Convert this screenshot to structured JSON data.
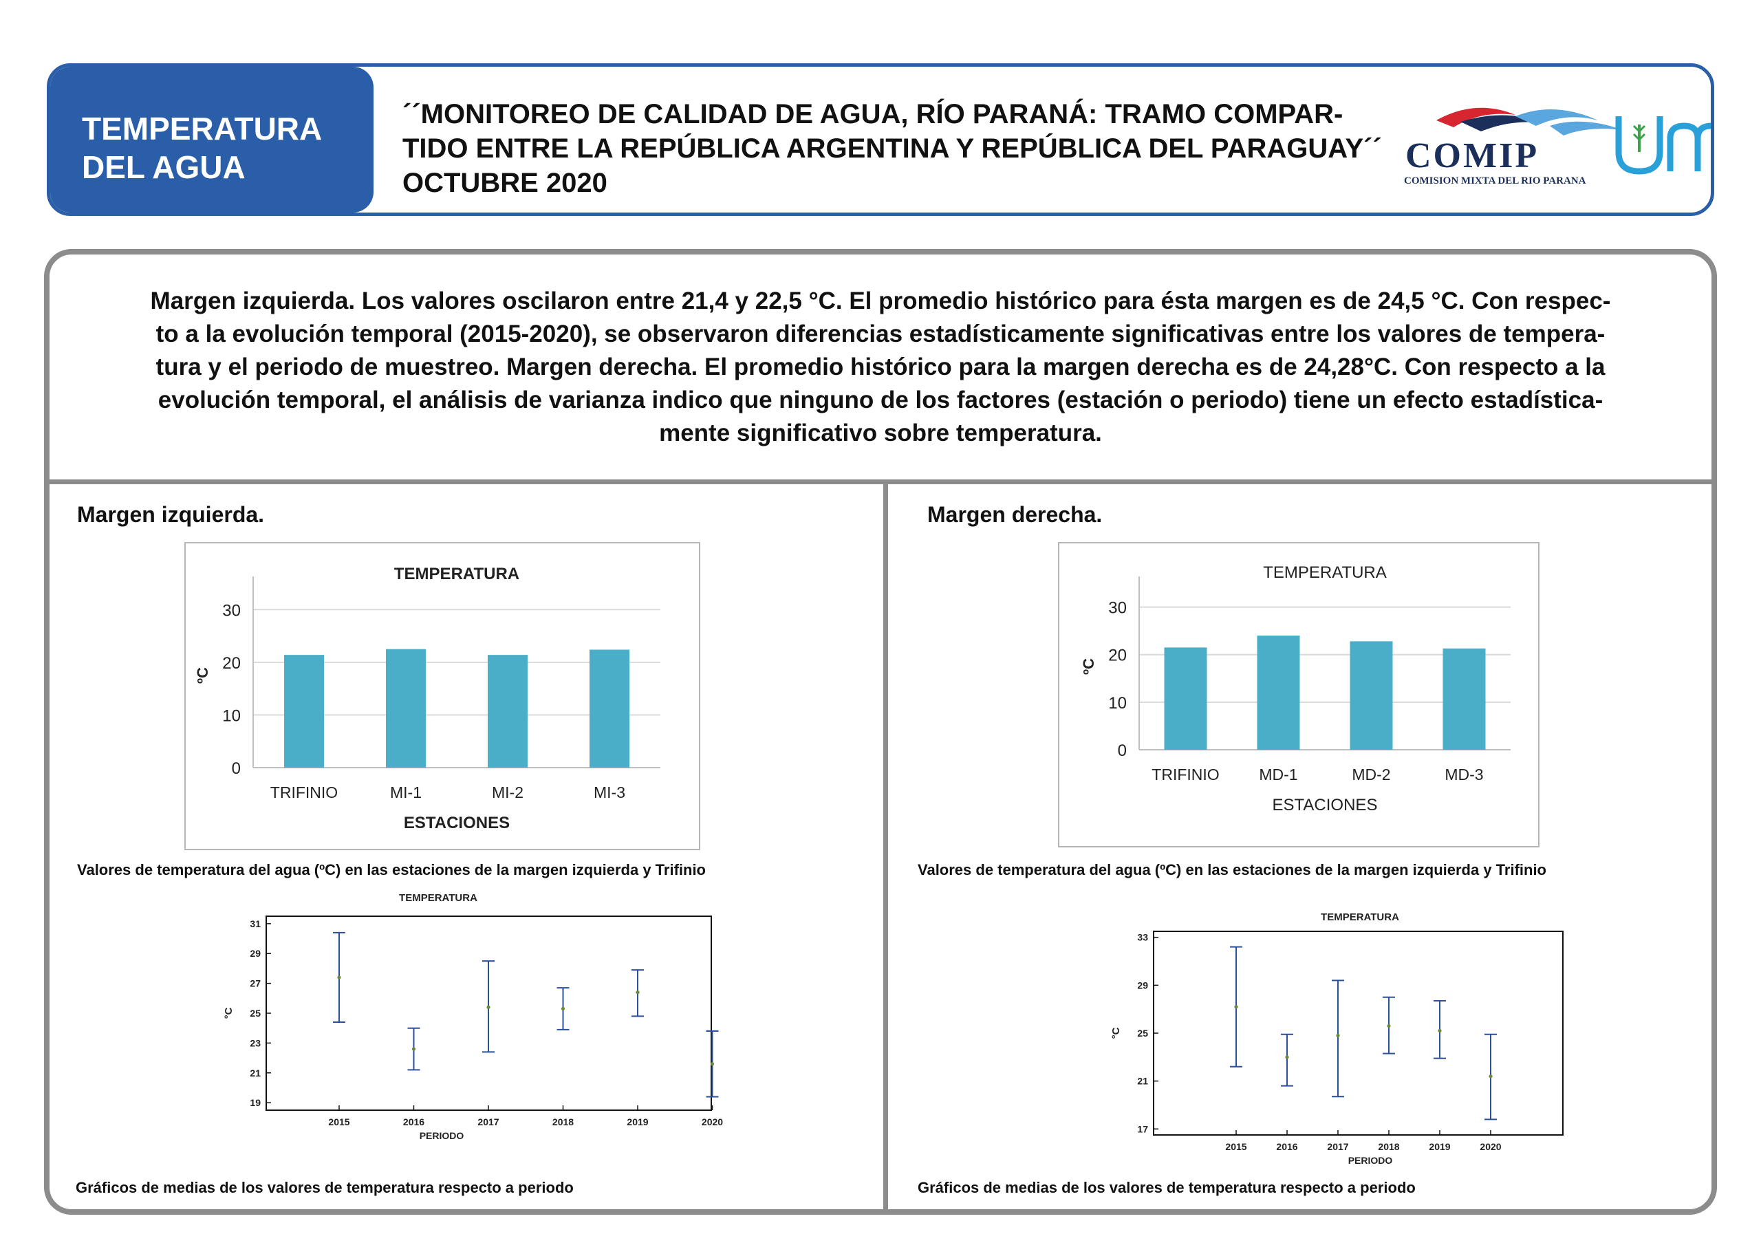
{
  "header": {
    "section_title_line1": "TEMPERATURA",
    "section_title_line2": "DEL AGUA",
    "title_line1": "´´MONITOREO DE CALIDAD DE AGUA, RÍO PARANÁ: TRAMO COMPAR-",
    "title_line2": "TIDO ENTRE LA REPÚBLICA ARGENTINA Y REPÚBLICA DEL PARAGUAY´´",
    "title_line3": "OCTUBRE 2020",
    "logo_comip": "COMIP",
    "logo_comip_sub": "COMISION MIXTA DEL RIO PARANA",
    "logo_unam": "unam"
  },
  "summary": {
    "line1": "Margen izquierda. Los valores oscilaron entre 21,4 y 22,5 °C. El promedio histórico para ésta margen es de 24,5 °C. Con respec-",
    "line2": "to a la evolución temporal (2015-2020), se observaron diferencias estadísticamente significativas entre los valores de tempera-",
    "line3": "tura y el periodo de muestreo. Margen derecha. El promedio histórico para la margen derecha es de 24,28°C. Con respecto a la",
    "line4": "evolución temporal, el análisis de varianza indico que ninguno de los factores (estación o periodo) tiene un efecto estadística-",
    "line5": "mente significativo sobre temperatura."
  },
  "left": {
    "title": "Margen izquierda.",
    "bar_caption": "Valores de temperatura del agua (ºC) en las estaciones de la margen izquierda y Trifinio",
    "means_caption": "Gráficos de medias de los valores de temperatura respecto a periodo"
  },
  "right": {
    "title": "Margen derecha.",
    "bar_caption": "Valores de temperatura del agua (ºC) en las estaciones de la margen izquierda y Trifinio",
    "means_caption": "Gráficos de medias de los valores de temperatura respecto a periodo"
  },
  "colors": {
    "brand_blue": "#2a5ea8",
    "bar": "#4aaec9",
    "whisker": "#2a4f9e",
    "border_gray": "#8c8c8c"
  },
  "chart_data": [
    {
      "id": "left_bar",
      "type": "bar",
      "title": "TEMPERATURA",
      "xlabel": "ESTACIONES",
      "ylabel": "ºC",
      "categories": [
        "TRIFINIO",
        "MI-1",
        "MI-2",
        "MI-3"
      ],
      "values": [
        21.4,
        22.5,
        21.4,
        22.4
      ],
      "ylim": [
        0,
        35
      ],
      "yticks": [
        0,
        10,
        20,
        30
      ],
      "grid": true
    },
    {
      "id": "right_bar",
      "type": "bar",
      "title": "TEMPERATURA",
      "xlabel": "ESTACIONES",
      "ylabel": "ºC",
      "categories": [
        "TRIFINIO",
        "MD-1",
        "MD-2",
        "MD-3"
      ],
      "values": [
        21.5,
        24,
        22.8,
        21.3
      ],
      "ylim": [
        0,
        35
      ],
      "yticks": [
        0,
        10,
        20,
        30
      ],
      "grid": true
    },
    {
      "id": "left_means",
      "type": "scatter",
      "title": "TEMPERATURA",
      "xlabel": "PERIODO",
      "ylabel": "°C",
      "x": [
        "2015",
        "2016",
        "2017",
        "2018",
        "2019",
        "2020"
      ],
      "means": [
        27.4,
        22.6,
        25.4,
        25.3,
        26.4,
        21.6
      ],
      "lower": [
        24.4,
        21.2,
        22.4,
        23.9,
        24.8,
        19.4
      ],
      "upper": [
        30.4,
        24.0,
        28.5,
        26.7,
        27.9,
        23.8
      ],
      "ylim": [
        18.5,
        31.5
      ],
      "yticks": [
        19,
        21,
        23,
        25,
        27,
        29,
        31
      ],
      "grid": false
    },
    {
      "id": "right_means",
      "type": "scatter",
      "title": "TEMPERATURA",
      "xlabel": "PERIODO",
      "ylabel": "°C",
      "x": [
        "2015",
        "2016",
        "2017",
        "2018",
        "2019",
        "2020"
      ],
      "means": [
        27.2,
        23.0,
        24.8,
        25.6,
        25.2,
        21.4
      ],
      "lower": [
        22.2,
        20.6,
        19.7,
        23.3,
        22.9,
        17.8
      ],
      "upper": [
        32.2,
        24.9,
        29.4,
        28.0,
        27.7,
        24.9
      ],
      "ylim": [
        16.5,
        33.5
      ],
      "yticks": [
        17,
        21,
        25,
        29,
        33
      ],
      "grid": false
    }
  ]
}
